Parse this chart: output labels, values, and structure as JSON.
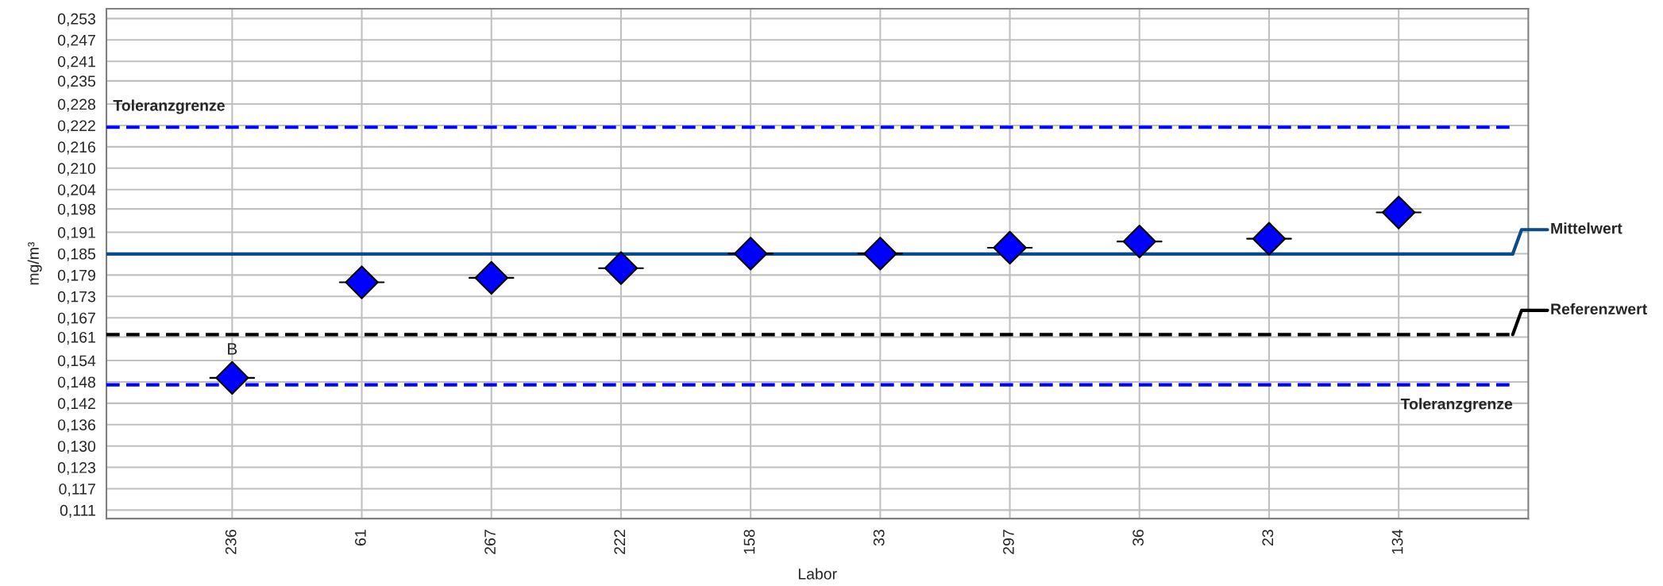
{
  "chart_data": {
    "type": "scatter",
    "xlabel": "Labor",
    "ylabel": "mg/m³",
    "categories": [
      "236",
      "61",
      "267",
      "222",
      "158",
      "33",
      "297",
      "36",
      "23",
      "134"
    ],
    "series": [
      {
        "color": "#0000ff",
        "values": [
          0.1492,
          0.1768,
          0.1781,
          0.1809,
          0.1851,
          0.1851,
          0.1868,
          0.1886,
          0.1894,
          0.197
        ]
      }
    ],
    "marker": "diamond",
    "ylim": [
      0.10854,
      0.25583
    ],
    "yticks": [
      {
        "value": 0.111,
        "label": "0,111"
      },
      {
        "value": 0.11717,
        "label": "0,117"
      },
      {
        "value": 0.12335,
        "label": "0,123"
      },
      {
        "value": 0.12952,
        "label": "0,130"
      },
      {
        "value": 0.1357,
        "label": "0,136"
      },
      {
        "value": 0.14187,
        "label": "0,142"
      },
      {
        "value": 0.14804,
        "label": "0,148"
      },
      {
        "value": 0.15422,
        "label": "0,154"
      },
      {
        "value": 0.161,
        "label": "0,161"
      },
      {
        "value": 0.16657,
        "label": "0,167"
      },
      {
        "value": 0.17274,
        "label": "0,173"
      },
      {
        "value": 0.17891,
        "label": "0,179"
      },
      {
        "value": 0.18509,
        "label": "0,185"
      },
      {
        "value": 0.19126,
        "label": "0,191"
      },
      {
        "value": 0.198,
        "label": "0,198"
      },
      {
        "value": 0.20361,
        "label": "0,204"
      },
      {
        "value": 0.20978,
        "label": "0,210"
      },
      {
        "value": 0.21596,
        "label": "0,216"
      },
      {
        "value": 0.22213,
        "label": "0,222"
      },
      {
        "value": 0.2283,
        "label": "0,228"
      },
      {
        "value": 0.235,
        "label": "0,235"
      },
      {
        "value": 0.24065,
        "label": "0,241"
      },
      {
        "value": 0.24683,
        "label": "0,247"
      },
      {
        "value": 0.253,
        "label": "0,253"
      }
    ],
    "grid": true,
    "ref_lines": [
      {
        "axis": "y",
        "value": 0.2216,
        "label": "Toleranzgrenze",
        "color": "#0000ff",
        "line_style": "dashed"
      },
      {
        "axis": "y",
        "value": 0.185,
        "label": "Mittelwert",
        "color": "#0b4a8b",
        "line_style": "solid"
      },
      {
        "axis": "y",
        "value": 0.1617,
        "label": "Referenzwert",
        "color": "#000000",
        "line_style": "dashed"
      },
      {
        "axis": "y",
        "value": 0.1472,
        "label": "Toleranzgrenze",
        "color": "#0000ff",
        "line_style": "dashed"
      }
    ],
    "annotations": [
      {
        "text": "B",
        "x": "236",
        "y": 0.1492
      }
    ]
  }
}
